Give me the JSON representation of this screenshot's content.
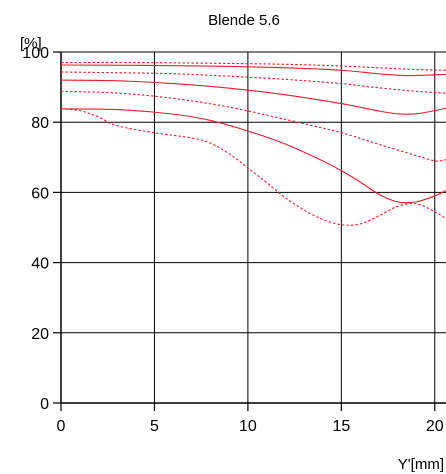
{
  "chart_data": {
    "type": "line",
    "title": "Blende 5.6",
    "ylabel": "[%]",
    "xlabel": "Y'[mm]",
    "xlim": [
      0,
      20.6
    ],
    "ylim": [
      0,
      100
    ],
    "x_ticks": [
      0,
      5,
      10,
      15,
      20
    ],
    "y_ticks": [
      0,
      20,
      40,
      60,
      80,
      100
    ],
    "grid": true,
    "colors": {
      "series": "#e8202a",
      "grid": "#000000",
      "axis": "#000000"
    },
    "series": [
      {
        "style": "solid",
        "x": [
          0,
          4,
          8,
          12,
          15,
          17,
          18.5,
          20,
          20.6
        ],
        "y": [
          96.3,
          96.2,
          96.0,
          95.5,
          94.8,
          93.8,
          93.3,
          93.5,
          93.6
        ]
      },
      {
        "style": "dashed",
        "x": [
          0,
          4,
          8,
          12,
          15,
          17,
          19,
          20.6
        ],
        "y": [
          97.0,
          97.0,
          96.8,
          96.5,
          96.0,
          95.5,
          95.0,
          94.8
        ]
      },
      {
        "style": "solid",
        "x": [
          0,
          3,
          6,
          9,
          12,
          15,
          17,
          18,
          19,
          20,
          20.6
        ],
        "y": [
          92.0,
          91.8,
          91.0,
          89.7,
          87.8,
          85.3,
          83.2,
          82.4,
          82.4,
          83.3,
          84.0
        ]
      },
      {
        "style": "dashed",
        "x": [
          0,
          3,
          6,
          9,
          12,
          15,
          17,
          19,
          20.6
        ],
        "y": [
          94.3,
          94.1,
          93.8,
          93.1,
          92.2,
          91.0,
          89.8,
          88.8,
          88.3
        ]
      },
      {
        "style": "solid",
        "x": [
          0,
          3,
          6,
          8,
          10,
          12,
          14,
          15,
          16,
          17,
          18,
          19,
          20,
          20.6
        ],
        "y": [
          83.8,
          83.6,
          82.3,
          80.5,
          77.5,
          73.8,
          69.0,
          66.2,
          63.0,
          59.5,
          57.3,
          57.3,
          59.0,
          60.5
        ]
      },
      {
        "style": "dashed",
        "x": [
          0,
          3,
          6,
          9,
          12,
          15,
          17,
          19,
          20,
          20.6
        ],
        "y": [
          88.8,
          88.3,
          86.8,
          84.3,
          80.8,
          77.0,
          73.7,
          70.5,
          69.0,
          69.3
        ]
      },
      {
        "style": "dashed",
        "x": [
          0,
          1,
          2,
          3,
          5,
          7,
          8,
          9,
          10,
          11,
          12,
          13,
          14,
          15,
          16,
          17,
          18,
          19,
          20,
          20.6
        ],
        "y": [
          83.8,
          83.3,
          81.5,
          79.0,
          77.0,
          75.5,
          74.0,
          71.0,
          67.0,
          62.8,
          58.5,
          55.0,
          52.3,
          50.8,
          51.0,
          53.3,
          56.0,
          56.8,
          54.5,
          52.5
        ]
      }
    ]
  }
}
